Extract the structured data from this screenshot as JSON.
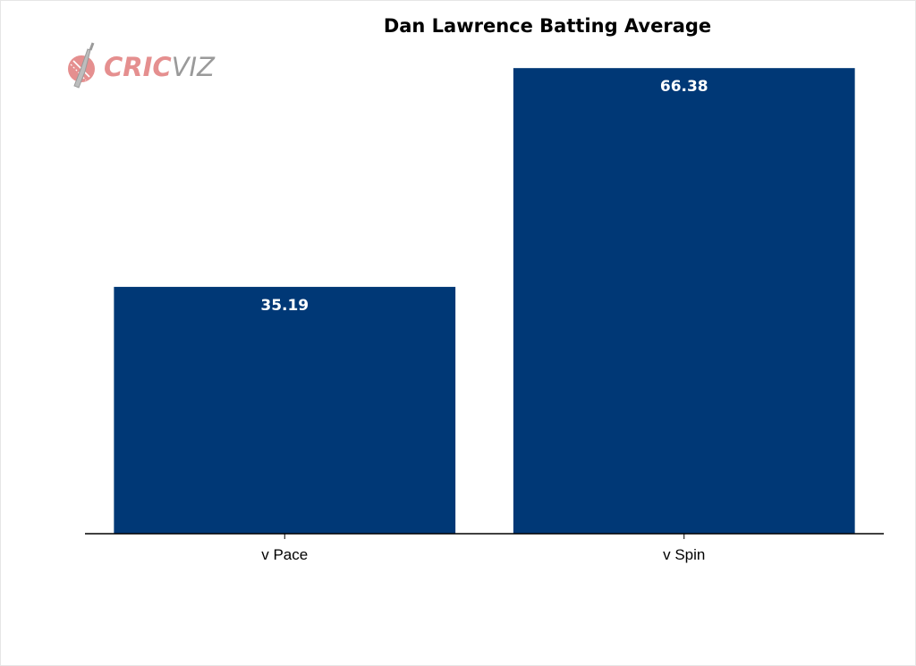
{
  "logo": {
    "word_part1": "CRIC",
    "word_part2": "VIZ",
    "icon": "cricket-ball-bat-icon",
    "colors": {
      "accent": "#e58f8f",
      "muted": "#9a9a9a"
    }
  },
  "chart_data": {
    "type": "bar",
    "title": "Dan Lawrence Batting Average",
    "xlabel": "",
    "ylabel": "",
    "categories": [
      "v Pace",
      "v Spin"
    ],
    "values": [
      35.19,
      66.38
    ],
    "value_labels": [
      "35.19",
      "66.38"
    ],
    "ylim": [
      0,
      71.5
    ],
    "grid": false,
    "bar_color": "#003876",
    "label_color": "#ffffff"
  }
}
